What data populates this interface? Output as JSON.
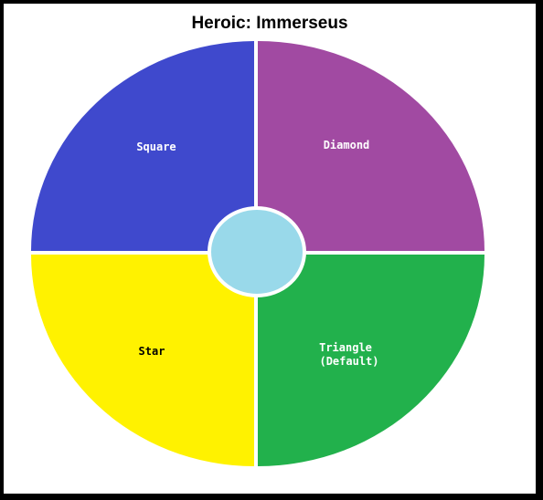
{
  "title": "Heroic: Immerseus",
  "quadrants": {
    "top_left": {
      "label": "Square",
      "color": "#3f49cd",
      "text_color": "#ffffff"
    },
    "top_right": {
      "label": "Diamond",
      "color": "#a14aa2",
      "text_color": "#ffffff"
    },
    "bottom_left": {
      "label": "Star",
      "color": "#fff200",
      "text_color": "#000000"
    },
    "bottom_right": {
      "label": "Triangle",
      "label_line2": "(Default)",
      "color": "#22b14c",
      "text_color": "#ffffff"
    }
  },
  "center": {
    "color": "#99d9ea",
    "border": "#ffffff"
  },
  "background": "#ffffff",
  "frame_color": "#000000"
}
